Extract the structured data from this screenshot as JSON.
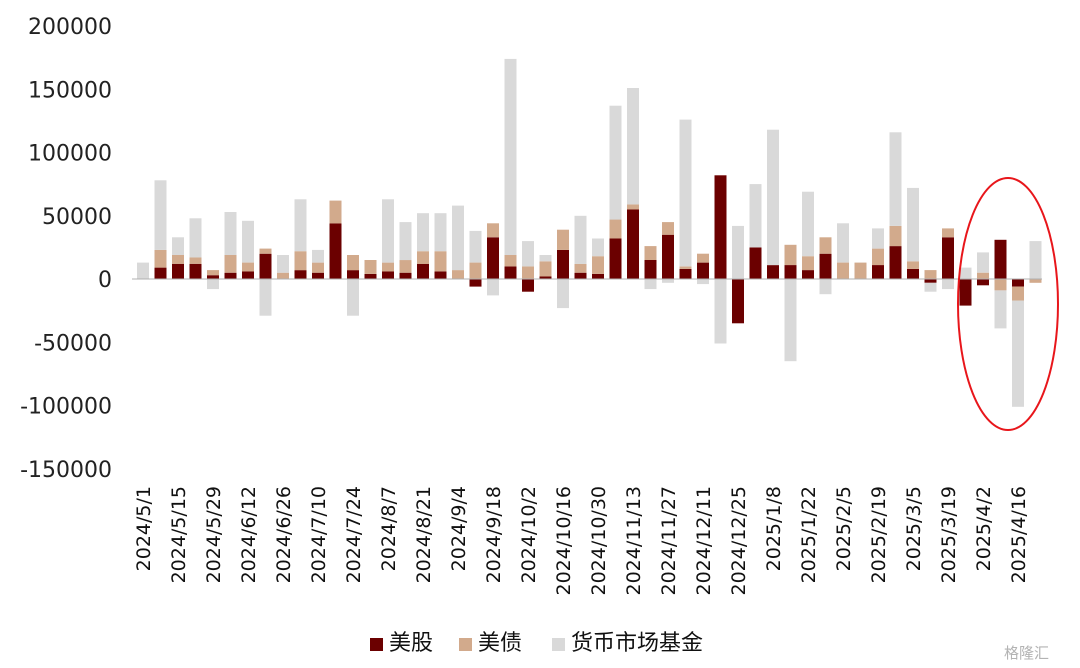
{
  "chart_data": {
    "type": "bar",
    "stacked": true,
    "title": "",
    "xlabel": "",
    "ylabel": "",
    "ylim": [
      -150000,
      200000
    ],
    "yticks": [
      200000,
      150000,
      100000,
      50000,
      0,
      -50000,
      -100000,
      -150000
    ],
    "grid": false,
    "legend_position": "bottom-center",
    "x_tick_labels": [
      "2024/5/1",
      "2024/5/15",
      "2024/5/29",
      "2024/6/12",
      "2024/6/26",
      "2024/7/10",
      "2024/7/24",
      "2024/8/7",
      "2024/8/21",
      "2024/9/4",
      "2024/9/18",
      "2024/10/2",
      "2024/10/16",
      "2024/10/30",
      "2024/11/13",
      "2024/11/27",
      "2024/12/11",
      "2024/12/25",
      "2025/1/8",
      "2025/1/22",
      "2025/2/5",
      "2025/2/19",
      "2025/3/5",
      "2025/3/19",
      "2025/4/2",
      "2025/4/16"
    ],
    "categories": [
      "2024/5/1",
      "2024/5/8",
      "2024/5/15",
      "2024/5/22",
      "2024/5/29",
      "2024/6/5",
      "2024/6/12",
      "2024/6/19",
      "2024/6/26",
      "2024/7/3",
      "2024/7/10",
      "2024/7/17",
      "2024/7/24",
      "2024/7/31",
      "2024/8/7",
      "2024/8/14",
      "2024/8/21",
      "2024/8/28",
      "2024/9/4",
      "2024/9/11",
      "2024/9/18",
      "2024/9/25",
      "2024/10/2",
      "2024/10/9",
      "2024/10/16",
      "2024/10/23",
      "2024/10/30",
      "2024/11/6",
      "2024/11/13",
      "2024/11/20",
      "2024/11/27",
      "2024/12/4",
      "2024/12/11",
      "2024/12/18",
      "2024/12/25",
      "2025/1/1",
      "2025/1/8",
      "2025/1/15",
      "2025/1/22",
      "2025/1/29",
      "2025/2/5",
      "2025/2/12",
      "2025/2/19",
      "2025/2/26",
      "2025/3/5",
      "2025/3/12",
      "2025/3/19",
      "2025/3/26",
      "2025/4/2",
      "2025/4/9",
      "2025/4/16",
      "2025/4/23"
    ],
    "series": [
      {
        "name": "美股",
        "color": "#6b0000",
        "values": [
          0,
          9000,
          12000,
          12000,
          3000,
          5000,
          6000,
          20000,
          0,
          7000,
          5000,
          44000,
          7000,
          4000,
          6000,
          5000,
          12000,
          6000,
          0,
          -6000,
          33000,
          10000,
          -10000,
          2000,
          23000,
          5000,
          4000,
          32000,
          55000,
          15000,
          35000,
          8000,
          13000,
          82000,
          -35000,
          25000,
          11000,
          11000,
          7000,
          20000,
          0,
          0,
          11000,
          26000,
          8000,
          -3000,
          33000,
          -21000,
          -5000,
          31000,
          -6000,
          0
        ]
      },
      {
        "name": "美债",
        "color": "#d2aa8c",
        "values": [
          0,
          14000,
          7000,
          5000,
          4000,
          14000,
          7000,
          4000,
          5000,
          15000,
          8000,
          18000,
          12000,
          11000,
          7000,
          10000,
          10000,
          16000,
          7000,
          13000,
          11000,
          9000,
          10000,
          12000,
          16000,
          7000,
          14000,
          15000,
          4000,
          11000,
          10000,
          2000,
          7000,
          0,
          0,
          0,
          0,
          16000,
          11000,
          13000,
          13000,
          13000,
          13000,
          16000,
          6000,
          7000,
          7000,
          0,
          5000,
          -9000,
          -11000,
          -3000
        ]
      },
      {
        "name": "货币市场基金",
        "color": "#d9d9d9",
        "values": [
          13000,
          55000,
          14000,
          31000,
          -8000,
          34000,
          33000,
          -29000,
          14000,
          41000,
          10000,
          0,
          -29000,
          0,
          50000,
          30000,
          30000,
          30000,
          51000,
          25000,
          -13000,
          155000,
          20000,
          5000,
          -23000,
          38000,
          14000,
          90000,
          92000,
          -8000,
          -3000,
          116000,
          -4000,
          -51000,
          42000,
          50000,
          107000,
          -65000,
          51000,
          -12000,
          31000,
          0,
          16000,
          74000,
          58000,
          -7000,
          -8000,
          9000,
          16000,
          -30000,
          -84000,
          30000
        ]
      }
    ],
    "annotations": [
      {
        "type": "ellipse",
        "color": "#e8161b",
        "around": [
          "2025/3/26",
          "2025/4/23"
        ]
      }
    ]
  },
  "legend": {
    "items": [
      {
        "label": "美股",
        "color": "#6b0000"
      },
      {
        "label": "美债",
        "color": "#d2aa8c"
      },
      {
        "label": "货币市场基金",
        "color": "#d9d9d9"
      }
    ]
  },
  "watermark": "格隆汇"
}
